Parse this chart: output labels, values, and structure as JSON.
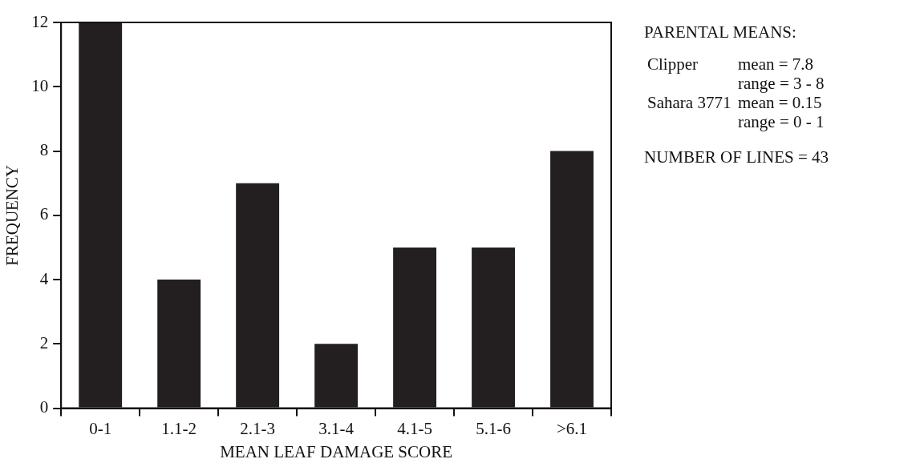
{
  "chart_data": {
    "type": "bar",
    "xlabel": "MEAN LEAF DAMAGE SCORE",
    "ylabel": "FREQUENCY",
    "categories": [
      "0-1",
      "1.1-2",
      "2.1-3",
      "3.1-4",
      "4.1-5",
      "5.1-6",
      ">6.1"
    ],
    "values": [
      12,
      4,
      7,
      2,
      5,
      5,
      8
    ],
    "color": "#231f20",
    "ylim": [
      0,
      12
    ],
    "yticks": [
      0,
      2,
      4,
      6,
      8,
      10,
      12
    ],
    "grid": false,
    "legend": false,
    "annotations": [
      "PARENTAL MEANS:",
      "Clipper",
      "mean = 7.8",
      "range = 3 - 8",
      "Sahara 3771",
      "mean = 0.15",
      "range = 0 - 1",
      "NUMBER OF LINES = 43"
    ]
  }
}
